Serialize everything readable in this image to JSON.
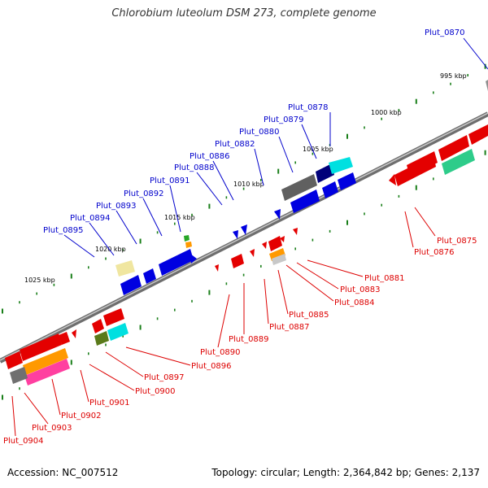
{
  "title": "Chlorobium luteolum DSM 273, complete genome",
  "accession": "Accession: NC_007512",
  "summary": "Topology: circular; Length: 2,364,842 bp; Genes: 2,137",
  "colors": {
    "forward_label": "#0000cc",
    "reverse_label": "#dd0000",
    "kbp_label": "#000000",
    "backbone": "#808080",
    "tick": "#1a7f1a"
  },
  "kbp_labels": [
    "995 kbp",
    "1000 kbp",
    "1005 kbp",
    "1010 kbp",
    "1015 kbp",
    "1020 kbp",
    "1025 kbp"
  ],
  "forward_genes": [
    "Plut_0870",
    "Plut_0878",
    "Plut_0879",
    "Plut_0880",
    "Plut_0882",
    "Plut_0886",
    "Plut_0888",
    "Plut_0891",
    "Plut_0892",
    "Plut_0893",
    "Plut_0894",
    "Plut_0895"
  ],
  "reverse_genes": [
    "Plut_0875",
    "Plut_0876",
    "Plut_0881",
    "Plut_0883",
    "Plut_0884",
    "Plut_0885",
    "Plut_0887",
    "Plut_0889",
    "Plut_0890",
    "Plut_0896",
    "Plut_0897",
    "Plut_0900",
    "Plut_0901",
    "Plut_0902",
    "Plut_0903",
    "Plut_0904"
  ]
}
